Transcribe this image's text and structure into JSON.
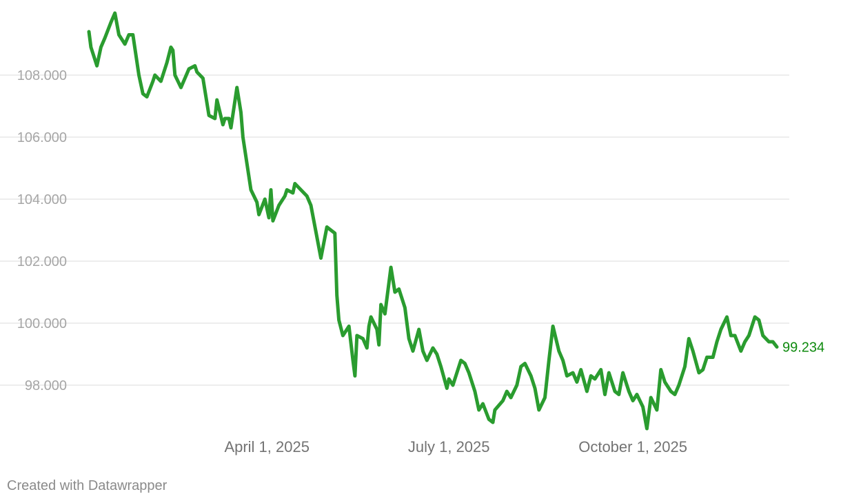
{
  "chart_data": {
    "type": "line",
    "title": "",
    "xlabel": "",
    "ylabel": "",
    "line_color": "#2a9c2f",
    "end_label_color": "#0e8a0e",
    "grid": true,
    "ylim": [
      96.5,
      110.0
    ],
    "xlim": [
      "2025-01-02",
      "2025-12-12"
    ],
    "y_ticks": [
      98,
      100,
      102,
      104,
      106,
      108
    ],
    "y_tick_labels": [
      "98.000",
      "100.000",
      "102.000",
      "104.000",
      "106.000",
      "108.000"
    ],
    "x_ticks": [
      "2025-04-01",
      "2025-07-01",
      "2025-10-01"
    ],
    "x_tick_labels": [
      "April 1, 2025",
      "July 1, 2025",
      "October 1, 2025"
    ],
    "end_label": "99.234",
    "series": [
      {
        "x": [
          "2025-01-02",
          "2025-01-03",
          "2025-01-06",
          "2025-01-08",
          "2025-01-10",
          "2025-01-13",
          "2025-01-15",
          "2025-01-17",
          "2025-01-20",
          "2025-01-22",
          "2025-01-24",
          "2025-01-27",
          "2025-01-29",
          "2025-01-31",
          "2025-02-03",
          "2025-02-04",
          "2025-02-07",
          "2025-02-10",
          "2025-02-12",
          "2025-02-13",
          "2025-02-14",
          "2025-02-17",
          "2025-02-21",
          "2025-02-24",
          "2025-02-25",
          "2025-02-28",
          "2025-03-03",
          "2025-03-06",
          "2025-03-07",
          "2025-03-10",
          "2025-03-11",
          "2025-03-13",
          "2025-03-14",
          "2025-03-17",
          "2025-03-19",
          "2025-03-20",
          "2025-03-24",
          "2025-03-27",
          "2025-03-28",
          "2025-03-31",
          "2025-04-01",
          "2025-04-02",
          "2025-04-03",
          "2025-04-04",
          "2025-04-07",
          "2025-04-10",
          "2025-04-11",
          "2025-04-14",
          "2025-04-15",
          "2025-04-21",
          "2025-04-23",
          "2025-04-28",
          "2025-05-01",
          "2025-05-05",
          "2025-05-06",
          "2025-05-07",
          "2025-05-09",
          "2025-05-12",
          "2025-05-14",
          "2025-05-15",
          "2025-05-16",
          "2025-05-19",
          "2025-05-21",
          "2025-05-22",
          "2025-05-23",
          "2025-05-26",
          "2025-05-27",
          "2025-05-28",
          "2025-05-30",
          "2025-06-02",
          "2025-06-04",
          "2025-06-06",
          "2025-06-09",
          "2025-06-11",
          "2025-06-13",
          "2025-06-16",
          "2025-06-18",
          "2025-06-20",
          "2025-06-23",
          "2025-06-25",
          "2025-06-27",
          "2025-06-30",
          "2025-07-01",
          "2025-07-03",
          "2025-07-07",
          "2025-07-09",
          "2025-07-11",
          "2025-07-14",
          "2025-07-16",
          "2025-07-18",
          "2025-07-21",
          "2025-07-23",
          "2025-07-24",
          "2025-07-28",
          "2025-07-30",
          "2025-08-01",
          "2025-08-04",
          "2025-08-06",
          "2025-08-08",
          "2025-08-11",
          "2025-08-13",
          "2025-08-15",
          "2025-08-18",
          "2025-08-20",
          "2025-08-22",
          "2025-08-25",
          "2025-08-27",
          "2025-08-29",
          "2025-09-01",
          "2025-09-03",
          "2025-09-05",
          "2025-09-08",
          "2025-09-10",
          "2025-09-12",
          "2025-09-15",
          "2025-09-17",
          "2025-09-19",
          "2025-09-22",
          "2025-09-24",
          "2025-09-26",
          "2025-09-29",
          "2025-10-01",
          "2025-10-03",
          "2025-10-06",
          "2025-10-08",
          "2025-10-10",
          "2025-10-13",
          "2025-10-15",
          "2025-10-17",
          "2025-10-20",
          "2025-10-22",
          "2025-10-24",
          "2025-10-27",
          "2025-10-29",
          "2025-10-31",
          "2025-11-03",
          "2025-11-05",
          "2025-11-07",
          "2025-11-10",
          "2025-11-12",
          "2025-11-14",
          "2025-11-17",
          "2025-11-19",
          "2025-11-21",
          "2025-11-24",
          "2025-11-26",
          "2025-11-28",
          "2025-12-01",
          "2025-12-03",
          "2025-12-05",
          "2025-12-08",
          "2025-12-10",
          "2025-12-12"
        ],
        "values": [
          109.4,
          108.9,
          108.3,
          108.9,
          109.2,
          109.7,
          110.0,
          109.3,
          109.0,
          109.3,
          109.3,
          108.0,
          107.4,
          107.3,
          107.8,
          108.0,
          107.8,
          108.4,
          108.9,
          108.8,
          108.0,
          107.6,
          108.2,
          108.3,
          108.1,
          107.9,
          106.7,
          106.6,
          107.2,
          106.4,
          106.6,
          106.6,
          106.3,
          107.6,
          106.8,
          106.0,
          104.3,
          103.9,
          103.5,
          104.0,
          103.7,
          103.4,
          104.3,
          103.3,
          103.8,
          104.1,
          104.3,
          104.2,
          104.5,
          104.1,
          103.8,
          102.1,
          103.1,
          102.9,
          100.9,
          100.1,
          99.6,
          99.9,
          98.8,
          98.3,
          99.6,
          99.5,
          99.2,
          99.9,
          100.2,
          99.8,
          99.3,
          100.6,
          100.3,
          101.8,
          101.0,
          101.1,
          100.5,
          99.5,
          99.1,
          99.8,
          99.1,
          98.8,
          99.2,
          99.0,
          98.6,
          97.9,
          98.2,
          98.0,
          98.8,
          98.7,
          98.4,
          97.8,
          97.2,
          97.4,
          96.9,
          96.8,
          97.2,
          97.5,
          97.8,
          97.6,
          98.0,
          98.6,
          98.7,
          98.3,
          97.9,
          97.2,
          97.6,
          98.8,
          99.9,
          99.1,
          98.8,
          98.3,
          98.4,
          98.1,
          98.5,
          97.8,
          98.3,
          98.2,
          98.5,
          97.7,
          98.4,
          97.8,
          97.7,
          98.4,
          97.8,
          97.5,
          97.7,
          97.3,
          96.6,
          97.6,
          97.2,
          98.5,
          98.1,
          97.8,
          97.7,
          98.0,
          98.6,
          99.5,
          99.1,
          98.4,
          98.5,
          98.9,
          98.9,
          99.4,
          99.8,
          100.2,
          99.6,
          99.6,
          99.1,
          99.4,
          99.6,
          100.2,
          100.1,
          99.6,
          99.4,
          99.4,
          99.234
        ]
      }
    ]
  },
  "footer": {
    "credit": "Created with Datawrapper"
  }
}
